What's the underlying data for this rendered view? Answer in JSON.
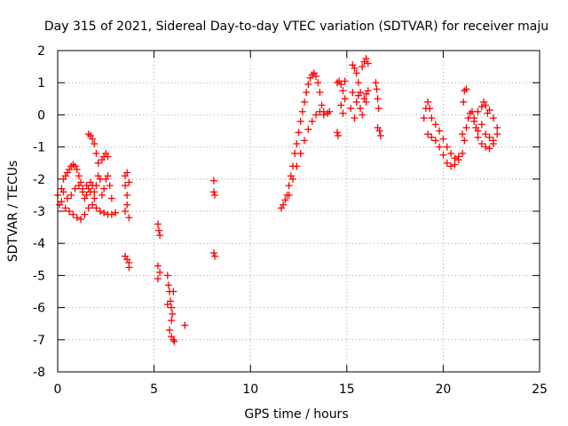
{
  "chart_data": {
    "type": "scatter",
    "title": "Day 315 of 2021, Sidereal Day-to-day VTEC variation (SDTVAR) for receiver maju",
    "xlabel": "GPS time / hours",
    "ylabel": "SDTVAR / TECUs",
    "xlim": [
      0,
      25
    ],
    "ylim": [
      -8,
      2
    ],
    "xticks": [
      0,
      5,
      10,
      15,
      20,
      25
    ],
    "yticks": [
      2,
      1,
      0,
      -1,
      -2,
      -3,
      -4,
      -5,
      -6,
      -7,
      -8
    ],
    "grid": true,
    "marker": "+",
    "marker_color": "#ff0000",
    "series": [
      {
        "name": "SDTVAR",
        "points": [
          [
            0.0,
            -2.5
          ],
          [
            0.1,
            -2.8
          ],
          [
            0.2,
            -2.3
          ],
          [
            0.3,
            -2.0
          ],
          [
            0.4,
            -1.9
          ],
          [
            0.5,
            -1.8
          ],
          [
            0.6,
            -1.7
          ],
          [
            0.7,
            -1.6
          ],
          [
            0.8,
            -1.55
          ],
          [
            0.9,
            -1.6
          ],
          [
            1.0,
            -1.7
          ],
          [
            1.1,
            -1.9
          ],
          [
            1.2,
            -2.1
          ],
          [
            1.3,
            -2.4
          ],
          [
            1.4,
            -2.6
          ],
          [
            1.5,
            -2.5
          ],
          [
            1.6,
            -2.3
          ],
          [
            1.7,
            -2.1
          ],
          [
            1.8,
            -2.2
          ],
          [
            1.9,
            -2.4
          ],
          [
            2.0,
            -2.2
          ],
          [
            2.1,
            -1.9
          ],
          [
            2.2,
            -2.0
          ],
          [
            2.3,
            -2.5
          ],
          [
            2.4,
            -2.3
          ],
          [
            2.5,
            -2.0
          ],
          [
            2.6,
            -1.9
          ],
          [
            2.7,
            -2.2
          ],
          [
            2.8,
            -2.6
          ],
          [
            0.2,
            -2.7
          ],
          [
            0.4,
            -2.9
          ],
          [
            0.6,
            -3.0
          ],
          [
            0.8,
            -3.1
          ],
          [
            1.0,
            -3.2
          ],
          [
            1.2,
            -3.25
          ],
          [
            1.4,
            -3.1
          ],
          [
            1.6,
            -2.9
          ],
          [
            1.8,
            -2.8
          ],
          [
            2.0,
            -2.9
          ],
          [
            2.2,
            -3.0
          ],
          [
            2.4,
            -3.05
          ],
          [
            2.6,
            -3.1
          ],
          [
            2.8,
            -3.1
          ],
          [
            3.0,
            -3.05
          ],
          [
            0.3,
            -2.4
          ],
          [
            0.5,
            -2.6
          ],
          [
            0.7,
            -2.5
          ],
          [
            0.9,
            -2.3
          ],
          [
            1.1,
            -2.2
          ],
          [
            1.3,
            -2.3
          ],
          [
            1.5,
            -2.2
          ],
          [
            1.7,
            -2.4
          ],
          [
            1.9,
            -2.6
          ],
          [
            1.6,
            -0.6
          ],
          [
            1.7,
            -0.65
          ],
          [
            1.8,
            -0.75
          ],
          [
            1.9,
            -0.9
          ],
          [
            2.0,
            -1.2
          ],
          [
            2.1,
            -1.5
          ],
          [
            2.3,
            -1.4
          ],
          [
            2.4,
            -1.3
          ],
          [
            2.5,
            -1.2
          ],
          [
            2.6,
            -1.3
          ],
          [
            3.5,
            -1.9
          ],
          [
            3.5,
            -2.2
          ],
          [
            3.6,
            -2.5
          ],
          [
            3.6,
            -2.8
          ],
          [
            3.5,
            -3.0
          ],
          [
            3.7,
            -3.2
          ],
          [
            3.7,
            -2.1
          ],
          [
            3.6,
            -1.8
          ],
          [
            3.5,
            -4.4
          ],
          [
            3.6,
            -4.5
          ],
          [
            3.7,
            -4.6
          ],
          [
            3.7,
            -4.75
          ],
          [
            5.2,
            -3.4
          ],
          [
            5.25,
            -3.6
          ],
          [
            5.3,
            -3.75
          ],
          [
            5.2,
            -4.7
          ],
          [
            5.3,
            -4.9
          ],
          [
            5.2,
            -5.1
          ],
          [
            5.7,
            -5.0
          ],
          [
            5.75,
            -5.3
          ],
          [
            5.8,
            -5.5
          ],
          [
            5.85,
            -5.8
          ],
          [
            5.9,
            -6.0
          ],
          [
            5.95,
            -6.2
          ],
          [
            6.0,
            -5.5
          ],
          [
            5.7,
            -5.9
          ],
          [
            5.9,
            -6.4
          ],
          [
            5.8,
            -6.7
          ],
          [
            5.9,
            -6.9
          ],
          [
            6.0,
            -7.0
          ],
          [
            6.05,
            -7.05
          ],
          [
            6.6,
            -6.55
          ],
          [
            8.1,
            -2.05
          ],
          [
            8.1,
            -2.4
          ],
          [
            8.15,
            -2.5
          ],
          [
            8.1,
            -4.3
          ],
          [
            8.15,
            -4.4
          ],
          [
            11.6,
            -2.9
          ],
          [
            11.7,
            -2.8
          ],
          [
            11.8,
            -2.65
          ],
          [
            11.9,
            -2.5
          ],
          [
            12.0,
            -2.2
          ],
          [
            12.1,
            -1.9
          ],
          [
            12.2,
            -1.6
          ],
          [
            12.3,
            -1.2
          ],
          [
            12.4,
            -0.9
          ],
          [
            12.5,
            -0.55
          ],
          [
            12.6,
            -0.2
          ],
          [
            12.7,
            0.1
          ],
          [
            12.8,
            0.4
          ],
          [
            12.9,
            0.7
          ],
          [
            13.0,
            0.95
          ],
          [
            13.1,
            1.15
          ],
          [
            13.2,
            1.25
          ],
          [
            13.3,
            1.3
          ],
          [
            13.4,
            1.2
          ],
          [
            13.5,
            1.0
          ],
          [
            13.6,
            0.7
          ],
          [
            13.7,
            0.3
          ],
          [
            13.8,
            0.0
          ],
          [
            12.0,
            -2.5
          ],
          [
            12.2,
            -2.0
          ],
          [
            12.4,
            -1.6
          ],
          [
            12.6,
            -1.2
          ],
          [
            12.8,
            -0.8
          ],
          [
            13.0,
            -0.45
          ],
          [
            13.2,
            -0.2
          ],
          [
            13.4,
            0.0
          ],
          [
            13.6,
            0.1
          ],
          [
            13.8,
            0.1
          ],
          [
            14.0,
            0.05
          ],
          [
            14.1,
            0.1
          ],
          [
            14.5,
            -0.55
          ],
          [
            14.55,
            -0.65
          ],
          [
            14.5,
            1.0
          ],
          [
            14.6,
            1.05
          ],
          [
            14.7,
            0.95
          ],
          [
            14.8,
            0.75
          ],
          [
            14.9,
            0.5
          ],
          [
            14.9,
            1.05
          ],
          [
            14.7,
            0.3
          ],
          [
            14.8,
            0.05
          ],
          [
            15.3,
            1.55
          ],
          [
            15.4,
            1.45
          ],
          [
            15.5,
            1.3
          ],
          [
            15.6,
            1.0
          ],
          [
            15.7,
            0.7
          ],
          [
            15.8,
            1.5
          ],
          [
            15.9,
            1.65
          ],
          [
            16.0,
            1.75
          ],
          [
            16.1,
            1.6
          ],
          [
            15.5,
            0.4
          ],
          [
            15.6,
            0.6
          ],
          [
            15.7,
            0.2
          ],
          [
            15.8,
            0.0
          ],
          [
            15.9,
            0.5
          ],
          [
            16.0,
            0.65
          ],
          [
            16.1,
            0.75
          ],
          [
            16.0,
            0.4
          ],
          [
            15.3,
            0.7
          ],
          [
            15.2,
            0.2
          ],
          [
            15.4,
            -0.1
          ],
          [
            16.5,
            1.0
          ],
          [
            16.55,
            0.8
          ],
          [
            16.6,
            0.5
          ],
          [
            16.65,
            0.2
          ],
          [
            16.7,
            -0.5
          ],
          [
            16.75,
            -0.65
          ],
          [
            16.6,
            -0.4
          ],
          [
            19.0,
            -0.1
          ],
          [
            19.1,
            0.2
          ],
          [
            19.2,
            0.4
          ],
          [
            19.3,
            0.2
          ],
          [
            19.4,
            -0.1
          ],
          [
            19.6,
            -0.3
          ],
          [
            19.8,
            -0.5
          ],
          [
            20.0,
            -0.75
          ],
          [
            20.2,
            -1.0
          ],
          [
            20.4,
            -1.2
          ],
          [
            20.6,
            -1.35
          ],
          [
            20.8,
            -1.4
          ],
          [
            21.0,
            -1.2
          ],
          [
            21.1,
            -0.8
          ],
          [
            21.2,
            -0.4
          ],
          [
            21.3,
            -0.1
          ],
          [
            21.4,
            0.05
          ],
          [
            21.5,
            0.1
          ],
          [
            21.6,
            -0.1
          ],
          [
            21.7,
            -0.4
          ],
          [
            21.8,
            -0.7
          ],
          [
            22.0,
            -0.9
          ],
          [
            22.2,
            -1.0
          ],
          [
            22.4,
            -1.05
          ],
          [
            22.6,
            -0.9
          ],
          [
            22.8,
            -0.6
          ],
          [
            19.2,
            -0.6
          ],
          [
            19.4,
            -0.7
          ],
          [
            19.6,
            -0.8
          ],
          [
            19.8,
            -1.0
          ],
          [
            20.0,
            -1.25
          ],
          [
            20.2,
            -1.5
          ],
          [
            20.4,
            -1.6
          ],
          [
            20.6,
            -1.55
          ],
          [
            20.8,
            -1.3
          ],
          [
            21.0,
            -0.6
          ],
          [
            21.05,
            0.4
          ],
          [
            21.1,
            0.75
          ],
          [
            21.2,
            0.8
          ],
          [
            21.6,
            -0.2
          ],
          [
            21.8,
            0.1
          ],
          [
            22.0,
            0.25
          ],
          [
            22.2,
            0.3
          ],
          [
            22.4,
            0.15
          ],
          [
            22.6,
            -0.1
          ],
          [
            22.8,
            -0.4
          ],
          [
            22.0,
            -0.3
          ],
          [
            22.2,
            -0.6
          ],
          [
            22.4,
            -0.7
          ],
          [
            22.6,
            -0.8
          ],
          [
            21.8,
            -0.5
          ],
          [
            22.1,
            0.4
          ],
          [
            22.3,
            0.05
          ]
        ]
      }
    ]
  }
}
